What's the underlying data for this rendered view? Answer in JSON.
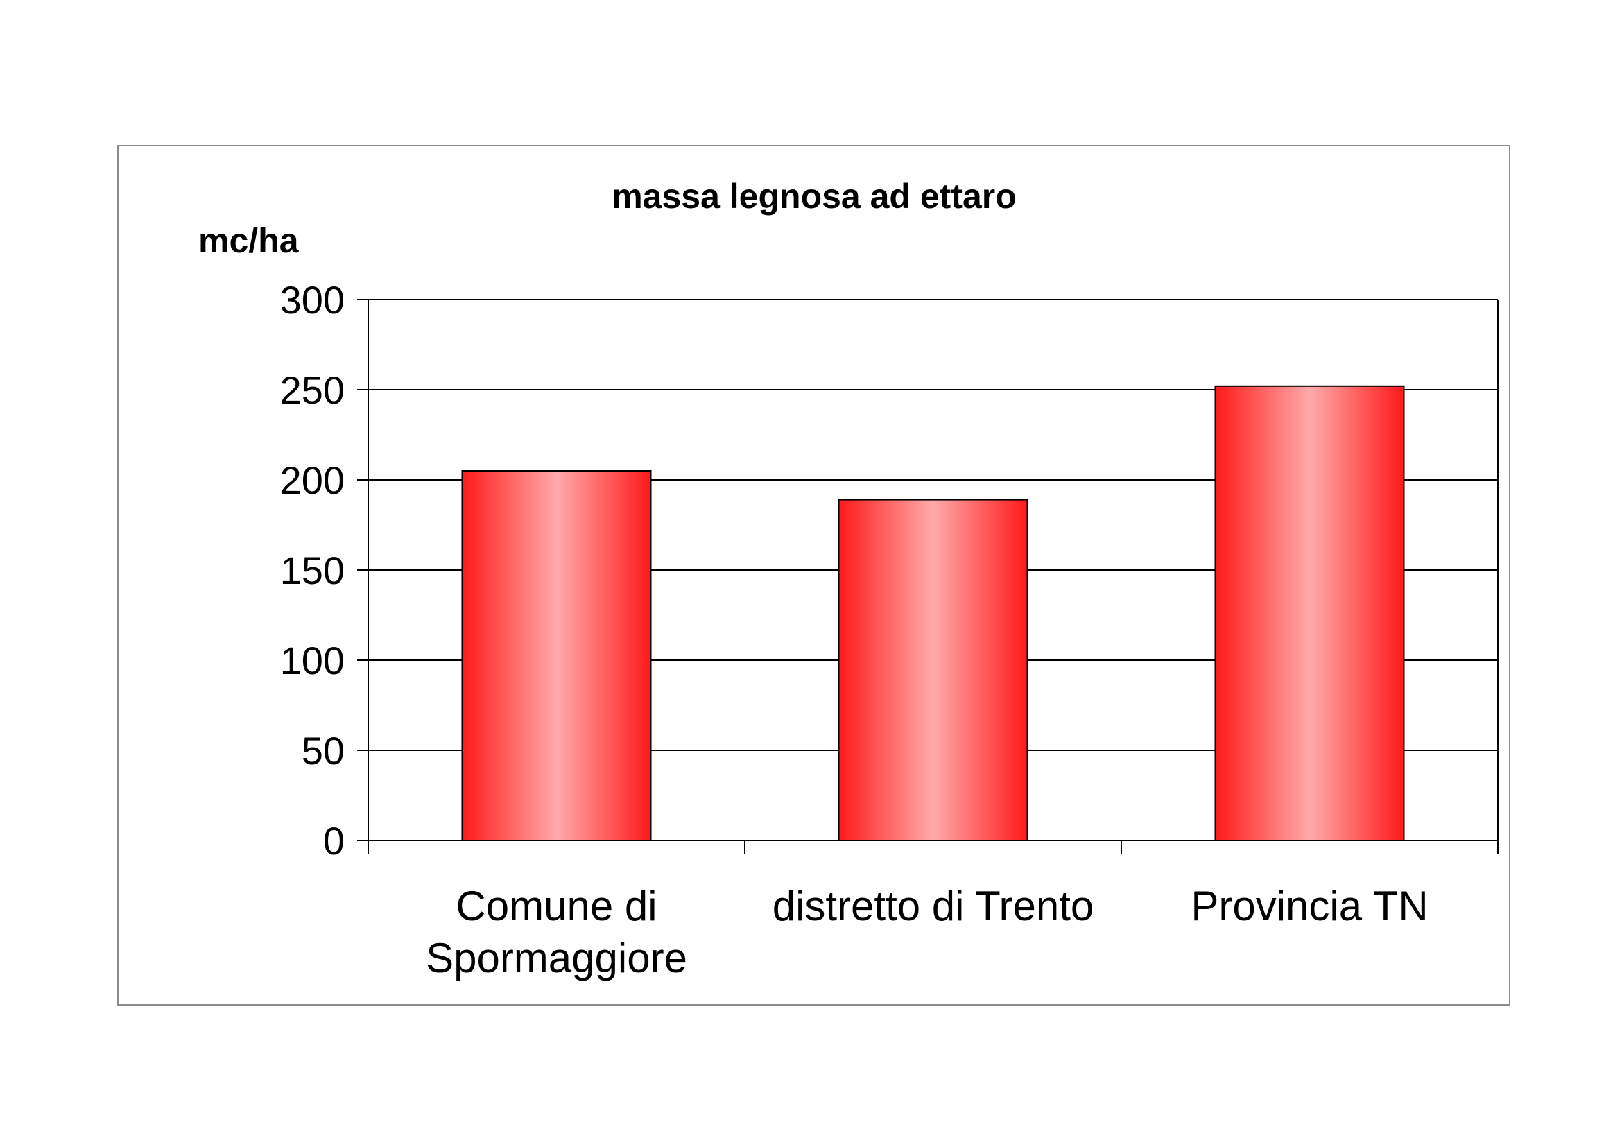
{
  "chart_data": {
    "type": "bar",
    "title": "massa legnosa ad ettaro",
    "ylabel": "mc/ha",
    "xlabel": "",
    "categories": [
      [
        "Comune di",
        "Spormaggiore"
      ],
      [
        "distretto di Trento"
      ],
      [
        "Provincia TN"
      ]
    ],
    "values": [
      205,
      189,
      252
    ],
    "ylim": [
      0,
      300
    ],
    "yticks": [
      0,
      50,
      100,
      150,
      200,
      250,
      300
    ],
    "grid": true,
    "legend": "none",
    "colors": {
      "bar_edge": "#ff1a1a",
      "bar_center": "#ffaaaa",
      "bar_outline": "#000000",
      "grid": "#000000",
      "frame": "#8c8c8c"
    }
  }
}
